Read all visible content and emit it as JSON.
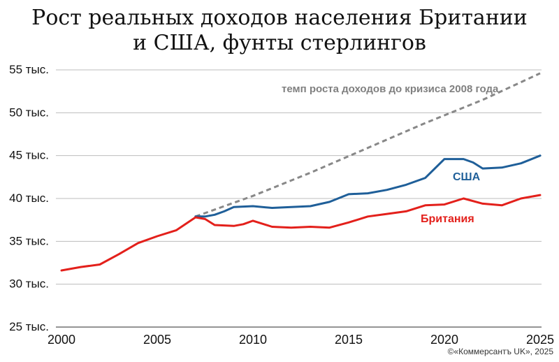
{
  "chart_data": {
    "type": "line",
    "title_lines": [
      "Рост реальных доходов населения Британии",
      "и США, фунты стерлингов"
    ],
    "y_ticks": [
      25,
      30,
      35,
      40,
      45,
      50,
      55
    ],
    "y_tick_labels": [
      "25 тыс.",
      "30 тыс.",
      "35 тыс.",
      "40 тыс.",
      "45 тыс.",
      "50 тыс.",
      "55 тыс."
    ],
    "x_ticks": [
      2000,
      2005,
      2010,
      2015,
      2020,
      2025
    ],
    "x_tick_labels": [
      "2000",
      "2005",
      "2010",
      "2015",
      "2020",
      "2025"
    ],
    "xlim": [
      2000,
      2025
    ],
    "ylim": [
      25,
      55
    ],
    "grid": true,
    "series": [
      {
        "name": "США",
        "color": "#1f5f99",
        "x": [
          2007,
          2007.5,
          2008,
          2008.5,
          2009,
          2010,
          2011,
          2012,
          2013,
          2014,
          2015,
          2016,
          2017,
          2018,
          2019,
          2020,
          2021,
          2021.5,
          2022,
          2023,
          2024,
          2025
        ],
        "values": [
          37.9,
          37.9,
          38.1,
          38.5,
          39.0,
          39.1,
          38.9,
          39.0,
          39.1,
          39.6,
          40.5,
          40.6,
          41.0,
          41.6,
          42.4,
          44.6,
          44.6,
          44.2,
          43.5,
          43.6,
          44.1,
          45.0
        ]
      },
      {
        "name": "Британия",
        "color": "#e3201b",
        "x": [
          2000,
          2001,
          2002,
          2003,
          2004,
          2005,
          2006,
          2007,
          2007.5,
          2008,
          2009,
          2009.5,
          2010,
          2011,
          2012,
          2013,
          2014,
          2015,
          2016,
          2017,
          2018,
          2019,
          2020,
          2021,
          2022,
          2023,
          2024,
          2025
        ],
        "values": [
          31.6,
          32.0,
          32.3,
          33.5,
          34.8,
          35.6,
          36.3,
          37.8,
          37.6,
          36.9,
          36.8,
          37.0,
          37.4,
          36.7,
          36.6,
          36.7,
          36.6,
          37.2,
          37.9,
          38.2,
          38.5,
          39.2,
          39.3,
          40.0,
          39.4,
          39.2,
          40.0,
          40.4
        ]
      },
      {
        "name": "",
        "color": "#888888",
        "dashed": true,
        "x": [
          2007,
          2010,
          2013,
          2016,
          2019,
          2022,
          2025
        ],
        "values": [
          37.9,
          40.3,
          43.0,
          45.9,
          48.8,
          51.5,
          54.6
        ]
      }
    ],
    "series_labels": {
      "usa": "США",
      "uk": "Британия"
    },
    "annotation": "темп роста доходов до кризиса 2008 года"
  },
  "credit": "©«Коммерсантъ UK», 2025"
}
